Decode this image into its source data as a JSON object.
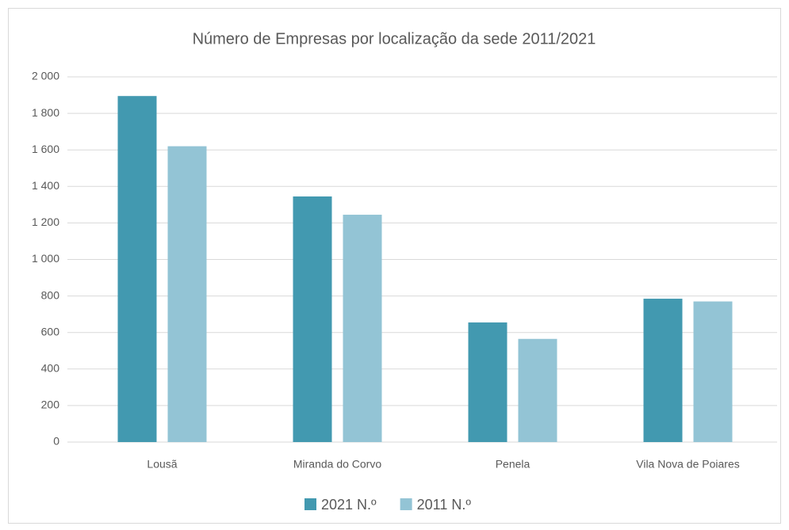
{
  "chart_data": {
    "type": "bar",
    "title": "Número de Empresas por localização da sede 2011/2021",
    "categories": [
      "Lousã",
      "Miranda do Corvo",
      "Penela",
      "Vila Nova de Poiares"
    ],
    "series": [
      {
        "name": "2021 N.º",
        "color": "#4299b0",
        "values": [
          1895,
          1345,
          655,
          785
        ]
      },
      {
        "name": "2011 N.º",
        "color": "#93c4d5",
        "values": [
          1620,
          1245,
          565,
          770
        ]
      }
    ],
    "ylim": [
      0,
      2000
    ],
    "yticks": [
      0,
      200,
      400,
      600,
      800,
      {
        "value": 1000,
        "label": "1 000"
      },
      {
        "value": 1200,
        "label": "1 200"
      },
      {
        "value": 1400,
        "label": "1 400"
      },
      {
        "value": 1600,
        "label": "1 600"
      },
      {
        "value": 1800,
        "label": "1 800"
      },
      {
        "value": 2000,
        "label": "2 000"
      }
    ],
    "grid": true,
    "legend": "bottom"
  }
}
